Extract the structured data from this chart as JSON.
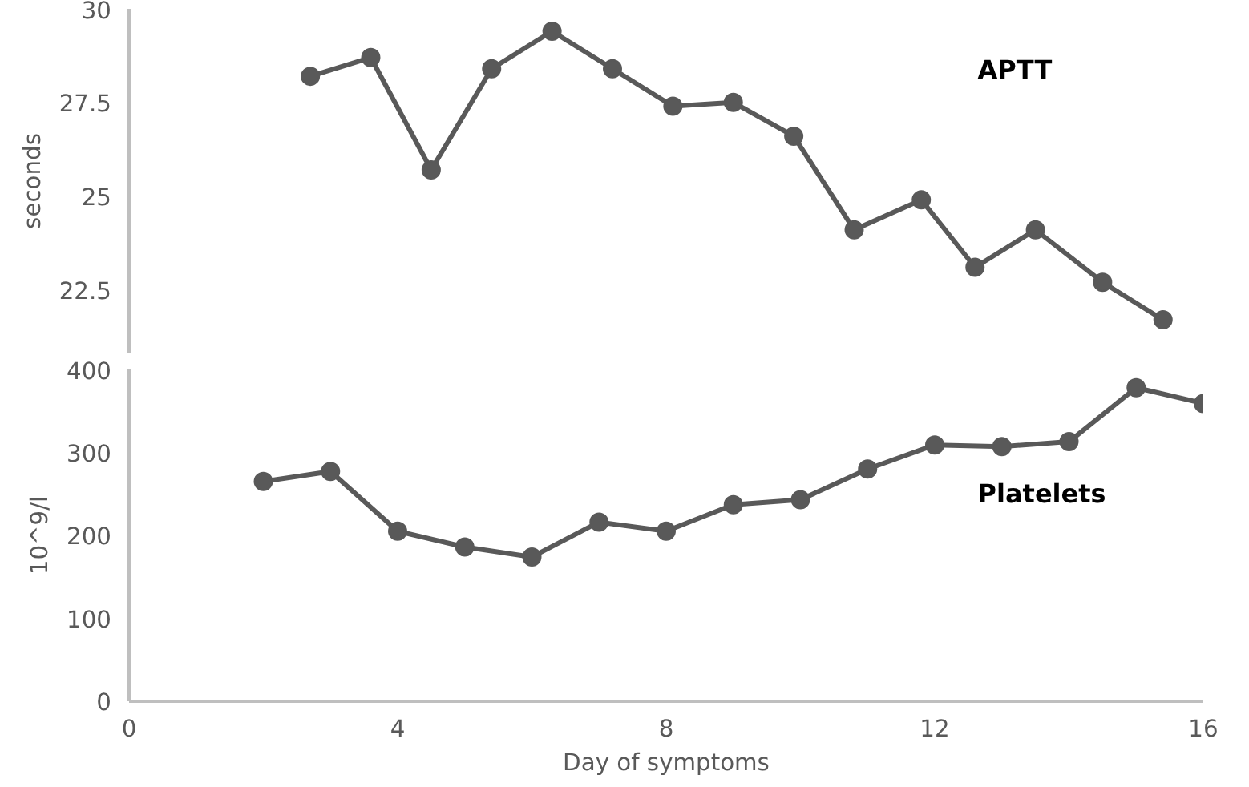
{
  "chart_data": [
    {
      "type": "line",
      "ylabel": "seconds",
      "xlim": [
        0,
        16
      ],
      "ylim": [
        20.8,
        30
      ],
      "yticks": [
        22.5,
        25,
        27.5,
        30
      ],
      "tick_labels": "y",
      "grid": false,
      "marker": "circle",
      "line_style": "solid",
      "series": [
        {
          "name": "APTT",
          "color": "#595959",
          "x": [
            2.7,
            3.6,
            4.5,
            5.4,
            6.3,
            7.2,
            8.1,
            9.0,
            9.9,
            10.8,
            11.8,
            12.6,
            13.5,
            14.5,
            15.4
          ],
          "values": [
            28.2,
            28.7,
            25.7,
            28.4,
            29.4,
            28.4,
            27.4,
            27.5,
            26.6,
            24.1,
            24.9,
            23.1,
            24.1,
            22.7,
            21.7
          ]
        }
      ]
    },
    {
      "type": "line",
      "xlabel": "Day of symptoms",
      "ylabel": "10^9/l",
      "xlim": [
        0,
        16
      ],
      "ylim": [
        0,
        400
      ],
      "xticks": [
        0,
        4,
        8,
        12,
        16
      ],
      "yticks": [
        0,
        100,
        200,
        300,
        400
      ],
      "grid": false,
      "marker": "circle",
      "line_style": "solid",
      "series": [
        {
          "name": "Platelets",
          "color": "#595959",
          "x": [
            2,
            3,
            4,
            5,
            6,
            7,
            8,
            9,
            10,
            11,
            12,
            13,
            14,
            15,
            16
          ],
          "values": [
            265,
            277,
            205,
            186,
            174,
            216,
            205,
            237,
            243,
            280,
            309,
            307,
            313,
            378,
            359
          ]
        }
      ]
    }
  ]
}
